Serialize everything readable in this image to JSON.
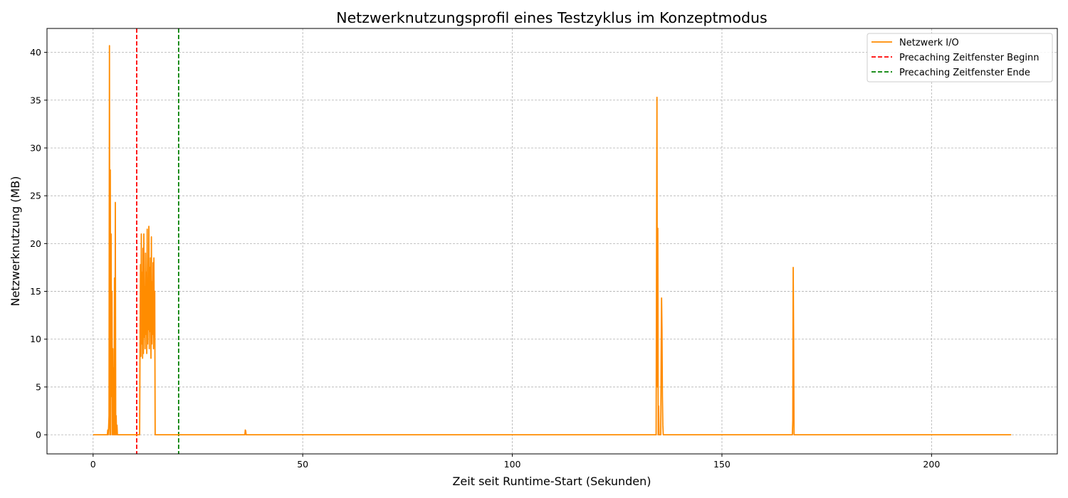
{
  "chart_data": {
    "type": "line",
    "title": "Netzwerknutzungsprofil eines Testzyklus im Konzeptmodus",
    "xlabel": "Zeit seit Runtime-Start (Sekunden)",
    "ylabel": "Netzwerknutzung (MB)",
    "xlim": [
      -11,
      230
    ],
    "ylim": [
      -2.0,
      42.5
    ],
    "xticks": [
      0,
      50,
      100,
      150,
      200
    ],
    "yticks": [
      0,
      5,
      10,
      15,
      20,
      25,
      30,
      35,
      40
    ],
    "grid": true,
    "legend_position": "top-right",
    "series": [
      {
        "name": "Netzwerk I/O",
        "color": "#ff8c00",
        "style": "solid",
        "x": [
          0,
          3.4,
          3.5,
          3.6,
          3.7,
          3.8,
          3.9,
          4.0,
          4.1,
          4.2,
          4.3,
          4.4,
          4.5,
          4.6,
          4.7,
          4.8,
          4.9,
          5.0,
          5.1,
          5.2,
          5.3,
          5.4,
          5.5,
          5.6,
          5.7,
          5.8,
          5.9,
          6.0,
          6.1,
          6.2,
          6.3,
          11.1,
          11.2,
          11.3,
          11.4,
          11.5,
          11.6,
          11.7,
          11.8,
          11.9,
          12.0,
          12.1,
          12.2,
          12.3,
          12.4,
          12.5,
          12.6,
          12.7,
          12.8,
          12.9,
          13.0,
          13.1,
          13.2,
          13.3,
          13.4,
          13.5,
          13.6,
          13.7,
          13.8,
          13.9,
          14.0,
          14.1,
          14.2,
          14.3,
          14.4,
          14.5,
          14.6,
          14.7,
          14.8,
          36.2,
          36.3,
          36.4,
          36.5,
          134.3,
          134.4,
          134.5,
          134.6,
          134.7,
          134.8,
          134.9,
          135.0,
          135.2,
          135.4,
          135.5,
          135.6,
          135.7,
          135.8,
          135.9,
          136.0,
          166.8,
          166.9,
          167.0,
          167.1,
          167.2,
          219
        ],
        "values": [
          0,
          0,
          0.5,
          0,
          0.8,
          2,
          40.7,
          0,
          27.7,
          0,
          21.0,
          4,
          15,
          0,
          9,
          0,
          7,
          0,
          16.4,
          0,
          24.3,
          0,
          2,
          0,
          1,
          0,
          0,
          0,
          0,
          0,
          0,
          0,
          10.5,
          17.8,
          8.2,
          21.0,
          9.5,
          17.0,
          8.0,
          19.5,
          8.5,
          21.0,
          10.2,
          15.5,
          9.0,
          19.0,
          10.5,
          17.0,
          8.5,
          21.5,
          9.5,
          15.0,
          11.0,
          21.8,
          9.0,
          17.5,
          10.8,
          18.5,
          8.0,
          20.7,
          9.5,
          16.0,
          10.5,
          18.0,
          9.0,
          18.5,
          10.2,
          15.0,
          0,
          0,
          0.5,
          0.4,
          0,
          0,
          18.0,
          35.3,
          5,
          21.6,
          0,
          3,
          0,
          0,
          0,
          8,
          14.3,
          11,
          4,
          1,
          0,
          0,
          1.5,
          17.5,
          10,
          0,
          0
        ]
      },
      {
        "name": "Precaching Zeitfenster Beginn",
        "color": "#ff0000",
        "style": "dashed",
        "vline_x": 10.4
      },
      {
        "name": "Precaching Zeitfenster Ende",
        "color": "#008000",
        "style": "dashed",
        "vline_x": 20.4
      }
    ]
  }
}
